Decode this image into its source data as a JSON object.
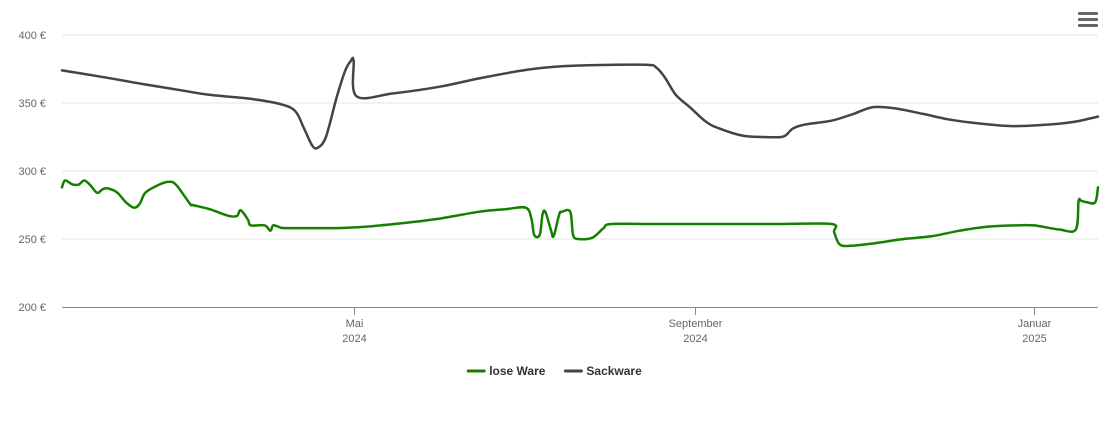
{
  "menu_icon": "hamburger-menu-icon",
  "chart_data": {
    "type": "line",
    "y_ticks": [
      {
        "value": 200,
        "label": "200 €"
      },
      {
        "value": 250,
        "label": "250 €"
      },
      {
        "value": 300,
        "label": "300 €"
      },
      {
        "value": 350,
        "label": "350 €"
      },
      {
        "value": 400,
        "label": "400 €"
      }
    ],
    "ylim": [
      200,
      400
    ],
    "xlim": [
      "2024-01-17",
      "2025-01-24"
    ],
    "x_ticks": [
      {
        "date": "2024-05-01",
        "line1": "Mai",
        "line2": "2024"
      },
      {
        "date": "2024-09-01",
        "line1": "September",
        "line2": "2024"
      },
      {
        "date": "2025-01-01",
        "line1": "Januar",
        "line2": "2025"
      }
    ],
    "grid": "horizontal",
    "legend_position": "bottom-center",
    "series": [
      {
        "name": "lose Ware",
        "color": "#157f00",
        "points": [
          [
            "2024-01-17",
            288
          ],
          [
            "2024-01-18",
            293
          ],
          [
            "2024-01-20",
            291
          ],
          [
            "2024-01-21",
            290
          ],
          [
            "2024-01-23",
            290
          ],
          [
            "2024-01-25",
            293
          ],
          [
            "2024-01-27",
            290
          ],
          [
            "2024-01-29",
            285
          ],
          [
            "2024-01-30",
            284
          ],
          [
            "2024-02-01",
            287
          ],
          [
            "2024-02-03",
            287
          ],
          [
            "2024-02-06",
            284
          ],
          [
            "2024-02-09",
            277
          ],
          [
            "2024-02-12",
            273
          ],
          [
            "2024-02-14",
            276
          ],
          [
            "2024-02-16",
            284
          ],
          [
            "2024-02-20",
            289
          ],
          [
            "2024-02-24",
            292
          ],
          [
            "2024-02-27",
            290
          ],
          [
            "2024-03-03",
            276
          ],
          [
            "2024-03-04",
            275
          ],
          [
            "2024-03-10",
            272
          ],
          [
            "2024-03-17",
            267
          ],
          [
            "2024-03-20",
            267
          ],
          [
            "2024-03-21",
            271
          ],
          [
            "2024-03-22",
            270
          ],
          [
            "2024-03-24",
            264
          ],
          [
            "2024-03-25",
            260
          ],
          [
            "2024-03-30",
            260
          ],
          [
            "2024-04-01",
            256
          ],
          [
            "2024-04-02",
            260
          ],
          [
            "2024-04-04",
            259
          ],
          [
            "2024-04-06",
            258
          ],
          [
            "2024-04-15",
            258
          ],
          [
            "2024-04-25",
            258
          ],
          [
            "2024-05-05",
            259
          ],
          [
            "2024-05-20",
            262
          ],
          [
            "2024-06-01",
            265
          ],
          [
            "2024-06-15",
            270
          ],
          [
            "2024-06-25",
            272
          ],
          [
            "2024-07-02",
            273
          ],
          [
            "2024-07-04",
            265
          ],
          [
            "2024-07-05",
            253
          ],
          [
            "2024-07-07",
            253
          ],
          [
            "2024-07-08",
            268
          ],
          [
            "2024-07-09",
            270
          ],
          [
            "2024-07-11",
            257
          ],
          [
            "2024-07-12",
            252
          ],
          [
            "2024-07-14",
            268
          ],
          [
            "2024-07-15",
            270
          ],
          [
            "2024-07-18",
            270
          ],
          [
            "2024-07-19",
            253
          ],
          [
            "2024-07-21",
            250
          ],
          [
            "2024-07-26",
            251
          ],
          [
            "2024-07-30",
            258
          ],
          [
            "2024-08-02",
            261
          ],
          [
            "2024-08-20",
            261
          ],
          [
            "2024-09-30",
            261
          ],
          [
            "2024-10-20",
            261
          ],
          [
            "2024-10-21",
            255
          ],
          [
            "2024-10-23",
            246
          ],
          [
            "2024-10-27",
            245
          ],
          [
            "2024-11-05",
            247
          ],
          [
            "2024-11-15",
            250
          ],
          [
            "2024-11-25",
            252
          ],
          [
            "2024-12-05",
            256
          ],
          [
            "2024-12-15",
            259
          ],
          [
            "2024-12-25",
            260
          ],
          [
            "2025-01-01",
            260
          ],
          [
            "2025-01-10",
            257
          ],
          [
            "2025-01-16",
            257
          ],
          [
            "2025-01-17",
            278
          ],
          [
            "2025-01-18",
            278
          ],
          [
            "2025-01-20",
            277
          ],
          [
            "2025-01-23",
            277
          ],
          [
            "2025-01-24",
            288
          ]
        ]
      },
      {
        "name": "Sackware",
        "color": "#434348",
        "points": [
          [
            "2024-01-17",
            374
          ],
          [
            "2024-02-01",
            369
          ],
          [
            "2024-02-15",
            364
          ],
          [
            "2024-03-01",
            359
          ],
          [
            "2024-03-10",
            356
          ],
          [
            "2024-03-25",
            353
          ],
          [
            "2024-04-05",
            349
          ],
          [
            "2024-04-10",
            344
          ],
          [
            "2024-04-13",
            332
          ],
          [
            "2024-04-16",
            319
          ],
          [
            "2024-04-18",
            317
          ],
          [
            "2024-04-21",
            325
          ],
          [
            "2024-04-25",
            355
          ],
          [
            "2024-04-28",
            374
          ],
          [
            "2024-04-30",
            381
          ],
          [
            "2024-05-01",
            381
          ],
          [
            "2024-05-02",
            355
          ],
          [
            "2024-05-15",
            357
          ],
          [
            "2024-06-01",
            362
          ],
          [
            "2024-06-15",
            368
          ],
          [
            "2024-07-01",
            374
          ],
          [
            "2024-07-15",
            377
          ],
          [
            "2024-08-01",
            378
          ],
          [
            "2024-08-15",
            378
          ],
          [
            "2024-08-18",
            376
          ],
          [
            "2024-08-21",
            369
          ],
          [
            "2024-08-25",
            356
          ],
          [
            "2024-08-30",
            347
          ],
          [
            "2024-09-05",
            336
          ],
          [
            "2024-09-10",
            331
          ],
          [
            "2024-09-18",
            326
          ],
          [
            "2024-09-25",
            325
          ],
          [
            "2024-10-02",
            325
          ],
          [
            "2024-10-04",
            327
          ],
          [
            "2024-10-06",
            331
          ],
          [
            "2024-10-10",
            334
          ],
          [
            "2024-10-20",
            337
          ],
          [
            "2024-10-28",
            342
          ],
          [
            "2024-11-04",
            347
          ],
          [
            "2024-11-12",
            346
          ],
          [
            "2024-11-22",
            342
          ],
          [
            "2024-12-01",
            338
          ],
          [
            "2024-12-12",
            335
          ],
          [
            "2024-12-24",
            333
          ],
          [
            "2025-01-05",
            334
          ],
          [
            "2025-01-15",
            336
          ],
          [
            "2025-01-24",
            340
          ]
        ]
      }
    ]
  }
}
